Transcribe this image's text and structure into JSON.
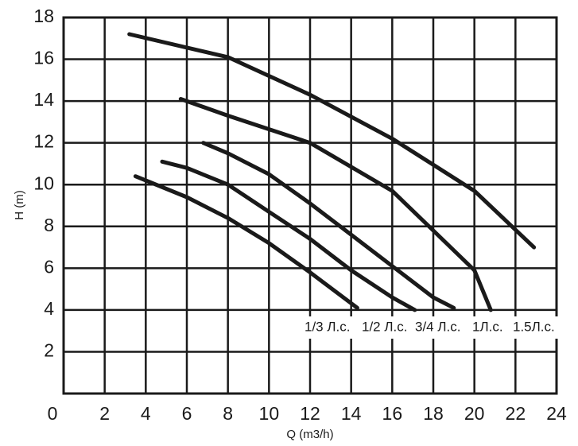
{
  "chart_data": {
    "type": "line",
    "xlabel": "Q (m3/h)",
    "ylabel": "H (m)",
    "xlim": [
      0,
      24
    ],
    "xticks": [
      0,
      2,
      4,
      6,
      8,
      10,
      12,
      14,
      16,
      18,
      20,
      22,
      24
    ],
    "ylim": [
      0,
      18
    ],
    "yticks": [
      2,
      4,
      6,
      8,
      10,
      12,
      14,
      16,
      18
    ],
    "grid": true,
    "series": [
      {
        "name": "1/3 Л.с.",
        "color": "#1a1a1a",
        "x": [
          3.5,
          6,
          8,
          10,
          12,
          14.3
        ],
        "values": [
          10.4,
          9.4,
          8.4,
          7.2,
          5.8,
          4.1
        ]
      },
      {
        "name": "1/2 Л.с.",
        "color": "#1a1a1a",
        "x": [
          4.8,
          6,
          8,
          10,
          12,
          14,
          16,
          17.1
        ],
        "values": [
          11.1,
          10.8,
          10.0,
          8.7,
          7.4,
          5.9,
          4.6,
          4.0
        ]
      },
      {
        "name": "3/4 Л.с.",
        "color": "#1a1a1a",
        "x": [
          6.8,
          8,
          10,
          12,
          14,
          16,
          18,
          19.0
        ],
        "values": [
          12.0,
          11.5,
          10.5,
          9.1,
          7.6,
          6.1,
          4.6,
          4.1
        ]
      },
      {
        "name": "1Л.с.",
        "color": "#1a1a1a",
        "x": [
          5.7,
          8,
          12,
          16,
          18,
          20,
          20.8
        ],
        "values": [
          14.1,
          13.3,
          12.0,
          9.7,
          7.8,
          5.9,
          4.0
        ]
      },
      {
        "name": "1.5Л.с.",
        "color": "#1a1a1a",
        "x": [
          3.2,
          8,
          12,
          16,
          20,
          22.9
        ],
        "values": [
          17.2,
          16.1,
          14.3,
          12.2,
          9.7,
          7.0
        ]
      }
    ]
  }
}
